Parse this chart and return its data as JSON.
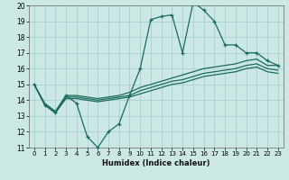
{
  "xlabel": "Humidex (Indice chaleur)",
  "ylabel": "",
  "xlim": [
    -0.5,
    23.5
  ],
  "ylim": [
    11,
    20
  ],
  "xticks": [
    0,
    1,
    2,
    3,
    4,
    5,
    6,
    7,
    8,
    9,
    10,
    11,
    12,
    13,
    14,
    15,
    16,
    17,
    18,
    19,
    20,
    21,
    22,
    23
  ],
  "yticks": [
    11,
    12,
    13,
    14,
    15,
    16,
    17,
    18,
    19,
    20
  ],
  "bg_color": "#cce8e4",
  "grid_color": "#aacfcb",
  "line_color": "#1a6b5e",
  "line1_x": [
    0,
    1,
    2,
    3,
    4,
    5,
    6,
    7,
    8,
    9,
    10,
    11,
    12,
    13,
    14,
    15,
    16,
    17,
    18,
    19,
    20,
    21,
    22,
    23
  ],
  "line1_y": [
    15.0,
    13.7,
    13.2,
    14.3,
    13.8,
    11.7,
    11.0,
    12.0,
    12.5,
    14.3,
    16.0,
    19.1,
    19.3,
    19.4,
    17.0,
    20.2,
    19.7,
    19.0,
    17.5,
    17.5,
    17.0,
    17.0,
    16.5,
    16.2
  ],
  "line2_x": [
    0,
    1,
    2,
    3,
    4,
    5,
    6,
    7,
    8,
    9,
    10,
    11,
    12,
    13,
    14,
    15,
    16,
    17,
    18,
    19,
    20,
    21,
    22,
    23
  ],
  "line2_y": [
    15.0,
    13.8,
    13.3,
    14.3,
    14.3,
    14.2,
    14.1,
    14.2,
    14.3,
    14.5,
    14.8,
    15.0,
    15.2,
    15.4,
    15.6,
    15.8,
    16.0,
    16.1,
    16.2,
    16.3,
    16.5,
    16.6,
    16.2,
    16.2
  ],
  "line3_x": [
    0,
    1,
    2,
    3,
    4,
    5,
    6,
    7,
    8,
    9,
    10,
    11,
    12,
    13,
    14,
    15,
    16,
    17,
    18,
    19,
    20,
    21,
    22,
    23
  ],
  "line3_y": [
    15.0,
    13.7,
    13.2,
    14.2,
    14.2,
    14.1,
    14.0,
    14.1,
    14.2,
    14.3,
    14.6,
    14.8,
    15.0,
    15.2,
    15.3,
    15.5,
    15.7,
    15.8,
    15.9,
    16.0,
    16.2,
    16.3,
    16.0,
    15.9
  ],
  "line4_x": [
    0,
    1,
    2,
    3,
    4,
    5,
    6,
    7,
    8,
    9,
    10,
    11,
    12,
    13,
    14,
    15,
    16,
    17,
    18,
    19,
    20,
    21,
    22,
    23
  ],
  "line4_y": [
    15.0,
    13.7,
    13.2,
    14.1,
    14.1,
    14.0,
    13.9,
    14.0,
    14.1,
    14.2,
    14.4,
    14.6,
    14.8,
    15.0,
    15.1,
    15.3,
    15.5,
    15.6,
    15.7,
    15.8,
    16.0,
    16.1,
    15.8,
    15.7
  ]
}
